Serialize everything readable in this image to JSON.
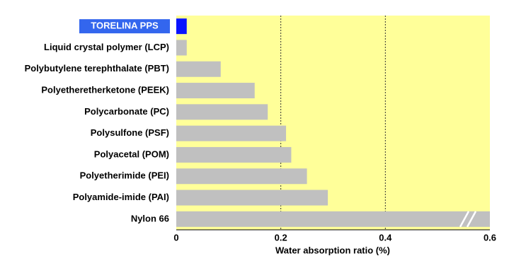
{
  "chart_data": {
    "type": "hbar",
    "x_label": "Water absorption ratio (%)",
    "categories": [
      "TORELINA PPS",
      "Liquid crystal polymer (LCP)",
      "Polybutylene terephthalate (PBT)",
      "Polyetheretherketone (PEEK)",
      "Polycarbonate (PC)",
      "Polysulfone (PSF)",
      "Polyacetal (POM)",
      "Polyetherimide (PEI)",
      "Polyamide-imide (PAI)",
      "Nylon 66"
    ],
    "values": [
      0.02,
      0.02,
      0.085,
      0.15,
      0.175,
      0.21,
      0.22,
      0.25,
      0.29,
      0.6
    ],
    "colors": [
      "#0a14ff",
      "#c0c0c0",
      "#c0c0c0",
      "#c0c0c0",
      "#c0c0c0",
      "#c0c0c0",
      "#c0c0c0",
      "#c0c0c0",
      "#c0c0c0",
      "#c0c0c0"
    ],
    "highlight_index": 0,
    "xlim": [
      0,
      0.6
    ],
    "xticks": [
      0,
      0.2,
      0.4,
      0.6
    ],
    "grid": true,
    "background": "#ffff99"
  }
}
